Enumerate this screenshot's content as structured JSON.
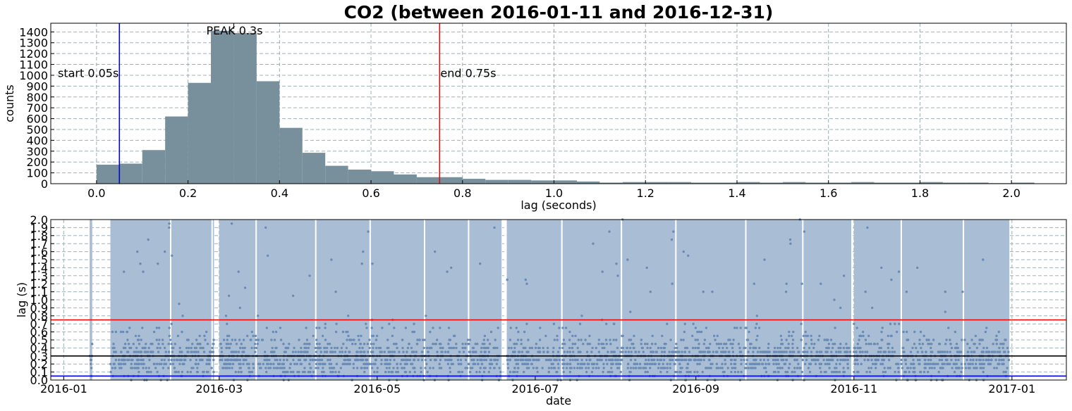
{
  "chart_data": [
    {
      "type": "bar",
      "title": "CO2 (between 2016-01-11 and 2016-12-31)",
      "xlabel": "lag (seconds)",
      "ylabel": "counts",
      "xlim": [
        -0.1,
        2.12
      ],
      "ylim": [
        0,
        1480
      ],
      "xticks": [
        "0.0",
        "0.2",
        "0.4",
        "0.6",
        "0.8",
        "1.0",
        "1.2",
        "1.4",
        "1.6",
        "1.8",
        "2.0"
      ],
      "xtick_values": [
        0,
        0.2,
        0.4,
        0.6,
        0.8,
        1.0,
        1.2,
        1.4,
        1.6,
        1.8,
        2.0
      ],
      "yticks": [
        0,
        100,
        200,
        300,
        400,
        500,
        600,
        700,
        800,
        900,
        1000,
        1100,
        1200,
        1300,
        1400
      ],
      "grid": true,
      "bar_color": "#78909c",
      "bin_width": 0.05,
      "bins": [
        0.0,
        0.05,
        0.1,
        0.15,
        0.2,
        0.25,
        0.3,
        0.35,
        0.4,
        0.45,
        0.5,
        0.55,
        0.6,
        0.65,
        0.7,
        0.75,
        0.8,
        0.85,
        0.9,
        0.95,
        1.0,
        1.05,
        1.1,
        1.15,
        1.2,
        1.25,
        1.3,
        1.35,
        1.4,
        1.45,
        1.5,
        1.55,
        1.6,
        1.65,
        1.7,
        1.75,
        1.8,
        1.85,
        1.9,
        1.95,
        2.0
      ],
      "values": [
        175,
        185,
        310,
        620,
        930,
        1410,
        1390,
        945,
        515,
        285,
        165,
        130,
        115,
        85,
        60,
        60,
        45,
        35,
        35,
        30,
        30,
        20,
        10,
        15,
        15,
        15,
        10,
        10,
        15,
        10,
        15,
        10,
        10,
        15,
        10,
        10,
        15,
        10,
        10,
        5,
        10
      ],
      "annotations": [
        {
          "label": "start 0.05s",
          "x": 0.05,
          "color": "#0000ff",
          "y": 985
        },
        {
          "label": "end 0.75s",
          "x": 0.75,
          "color": "#ff0000",
          "y": 985
        },
        {
          "label": "PEAK 0.3s",
          "x": 0.3,
          "color": "#000000",
          "y": 1390
        }
      ]
    },
    {
      "type": "scatter",
      "xlabel": "date",
      "ylabel": "lag (s)",
      "xlim": [
        "2015-12-27",
        "2017-01-22"
      ],
      "ylim": [
        0,
        2.0
      ],
      "xticks": [
        "2016-01",
        "2016-03",
        "2016-05",
        "2016-07",
        "2016-09",
        "2016-11",
        "2017-01"
      ],
      "xtick_dates": [
        "2016-01-01",
        "2016-03-01",
        "2016-05-01",
        "2016-07-01",
        "2016-09-01",
        "2016-11-01",
        "2017-01-01"
      ],
      "yticks": [
        "0.0",
        "0.1",
        "0.2",
        "0.3",
        "0.4",
        "0.5",
        "0.6",
        "0.7",
        "0.8",
        "0.9",
        "1.0",
        "1.1",
        "1.2",
        "1.3",
        "1.4",
        "1.5",
        "1.6",
        "1.7",
        "1.8",
        "1.9",
        "2.0"
      ],
      "ytick_values": [
        0,
        0.1,
        0.2,
        0.3,
        0.4,
        0.5,
        0.6,
        0.7,
        0.8,
        0.9,
        1.0,
        1.1,
        1.2,
        1.3,
        1.4,
        1.5,
        1.6,
        1.7,
        1.8,
        1.9,
        2.0
      ],
      "grid": true,
      "point_color": "#6a8bb5",
      "fill_color": "#a9bed4",
      "data_periods": [
        {
          "start": "2016-01-11",
          "end": "2016-01-12"
        },
        {
          "start": "2016-01-19",
          "end": "2016-02-28"
        },
        {
          "start": "2016-03-01",
          "end": "2016-06-18"
        },
        {
          "start": "2016-06-20",
          "end": "2016-10-31"
        },
        {
          "start": "2016-11-01",
          "end": "2016-12-31"
        }
      ],
      "gaps": [
        "2016-02-11",
        "2016-02-27",
        "2016-03-15",
        "2016-04-07",
        "2016-04-28",
        "2016-05-19",
        "2016-06-05",
        "2016-06-19",
        "2016-07-11",
        "2016-08-03",
        "2016-08-24",
        "2016-09-20",
        "2016-10-12",
        "2016-10-31",
        "2016-11-19",
        "2016-12-13"
      ],
      "density_profile": [
        {
          "lag_range": [
            0.0,
            0.1
          ],
          "weight": 2
        },
        {
          "lag_range": [
            0.1,
            0.2
          ],
          "weight": 6
        },
        {
          "lag_range": [
            0.2,
            0.3
          ],
          "weight": 10
        },
        {
          "lag_range": [
            0.3,
            0.4
          ],
          "weight": 8
        },
        {
          "lag_range": [
            0.4,
            0.5
          ],
          "weight": 4
        },
        {
          "lag_range": [
            0.5,
            0.7
          ],
          "weight": 2
        },
        {
          "lag_range": [
            0.7,
            2.0
          ],
          "weight": 1
        }
      ],
      "hlines": [
        {
          "y": 0.75,
          "color": "#ff0000"
        },
        {
          "y": 0.3,
          "color": "#000000"
        },
        {
          "y": 0.05,
          "color": "#0000ff"
        }
      ]
    }
  ]
}
